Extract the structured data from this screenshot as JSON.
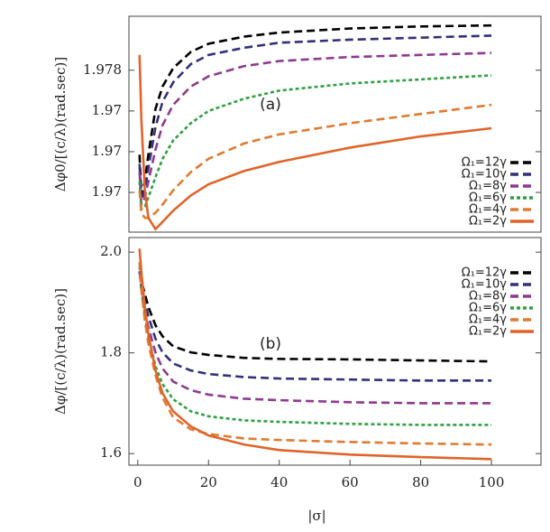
{
  "chart_data": [
    {
      "type": "line",
      "annotation": "(a)",
      "y_label": "Δφ0/[(c/λ)(rad.sec)]",
      "legend_loc": "lower right",
      "x": [
        0.5,
        1,
        2,
        3,
        5,
        7,
        10,
        15,
        20,
        30,
        40,
        60,
        80,
        100
      ],
      "xlim": [
        -2.5,
        114
      ],
      "ylim": [
        1.9621,
        1.9833
      ],
      "yticks": [
        1.978,
        {
          "value": 1.974,
          "label": "1.97"
        },
        {
          "value": 1.97,
          "label": "1.97"
        },
        {
          "value": 1.966,
          "label": "1.97"
        }
      ],
      "series": [
        {
          "name": "Ω₁=12γ",
          "color": "#000000",
          "style": "dashed",
          "values": [
            1.9697,
            1.9657,
            1.9671,
            1.9697,
            1.9742,
            1.9764,
            1.9782,
            1.9798,
            1.9806,
            1.9813,
            1.9817,
            1.9821,
            1.9823,
            1.9824
          ]
        },
        {
          "name": "Ω₁=10γ",
          "color": "#33307a",
          "style": "dashed",
          "values": [
            1.9688,
            1.9653,
            1.9662,
            1.9684,
            1.9724,
            1.9749,
            1.9768,
            1.9786,
            1.9795,
            1.9802,
            1.9807,
            1.981,
            1.9812,
            1.9814
          ]
        },
        {
          "name": "Ω₁=8γ",
          "color": "#8e3a8e",
          "style": "dashed",
          "values": [
            1.968,
            1.9648,
            1.9655,
            1.9671,
            1.9702,
            1.9726,
            1.9746,
            1.9764,
            1.9774,
            1.9784,
            1.9789,
            1.9793,
            1.9795,
            1.9797
          ]
        },
        {
          "name": "Ω₁=6γ",
          "color": "#2ea043",
          "style": "dotted",
          "values": [
            1.9671,
            1.9644,
            1.9646,
            1.9655,
            1.9675,
            1.9693,
            1.9711,
            1.9728,
            1.974,
            1.9752,
            1.976,
            1.9767,
            1.9771,
            1.9775
          ]
        },
        {
          "name": "Ω₁=4γ",
          "color": "#e07a30",
          "style": "dashed",
          "values": [
            1.9662,
            1.964,
            1.9635,
            1.9635,
            1.964,
            1.9648,
            1.9662,
            1.968,
            1.9693,
            1.9708,
            1.9717,
            1.9728,
            1.9737,
            1.9746
          ]
        },
        {
          "name": "Ω₁=2γ",
          "color": "#e0642a",
          "style": "solid",
          "values": [
            1.9795,
            1.9733,
            1.9662,
            1.9635,
            1.9624,
            1.9631,
            1.9642,
            1.9657,
            1.9668,
            1.9681,
            1.969,
            1.9704,
            1.9715,
            1.9723
          ]
        }
      ]
    },
    {
      "type": "line",
      "annotation": "(b)",
      "y_label": "Δφ/[(c/λ)(rad.sec)]",
      "x_label": "|σ|",
      "legend_loc": "upper right",
      "x": [
        0.5,
        1,
        2,
        3,
        5,
        7,
        10,
        15,
        20,
        30,
        40,
        60,
        80,
        100
      ],
      "xlim": [
        -2.5,
        114
      ],
      "ylim": [
        1.577,
        2.029
      ],
      "xticks": [
        0,
        20,
        40,
        60,
        80,
        100
      ],
      "yticks": [
        {
          "value": 2,
          "label": "2.0"
        },
        1.8,
        1.6
      ],
      "series": [
        {
          "name": "Ω₁=12γ",
          "color": "#000000",
          "style": "dashed",
          "values": [
            1.962,
            1.944,
            1.917,
            1.891,
            1.855,
            1.833,
            1.813,
            1.801,
            1.796,
            1.79,
            1.788,
            1.787,
            1.785,
            1.783
          ]
        },
        {
          "name": "Ω₁=10γ",
          "color": "#33307a",
          "style": "dashed",
          "values": [
            1.962,
            1.935,
            1.9,
            1.873,
            1.828,
            1.801,
            1.779,
            1.765,
            1.758,
            1.752,
            1.749,
            1.747,
            1.745,
            1.745
          ]
        },
        {
          "name": "Ω₁=8γ",
          "color": "#8e3a8e",
          "style": "dashed",
          "values": [
            1.962,
            1.926,
            1.882,
            1.851,
            1.801,
            1.769,
            1.743,
            1.726,
            1.717,
            1.709,
            1.706,
            1.702,
            1.7,
            1.7
          ]
        },
        {
          "name": "Ω₁=6γ",
          "color": "#2ea043",
          "style": "dotted",
          "values": [
            1.971,
            1.926,
            1.873,
            1.833,
            1.774,
            1.738,
            1.708,
            1.684,
            1.674,
            1.666,
            1.663,
            1.659,
            1.657,
            1.657
          ]
        },
        {
          "name": "Ω₁=4γ",
          "color": "#e07a30",
          "style": "dashed",
          "values": [
            1.98,
            1.926,
            1.864,
            1.819,
            1.756,
            1.711,
            1.672,
            1.648,
            1.639,
            1.63,
            1.627,
            1.623,
            1.62,
            1.618
          ]
        },
        {
          "name": "Ω₁=2γ",
          "color": "#e0642a",
          "style": "solid",
          "values": [
            2.007,
            1.962,
            1.891,
            1.837,
            1.765,
            1.72,
            1.684,
            1.654,
            1.636,
            1.618,
            1.607,
            1.598,
            1.593,
            1.589
          ]
        }
      ]
    }
  ]
}
